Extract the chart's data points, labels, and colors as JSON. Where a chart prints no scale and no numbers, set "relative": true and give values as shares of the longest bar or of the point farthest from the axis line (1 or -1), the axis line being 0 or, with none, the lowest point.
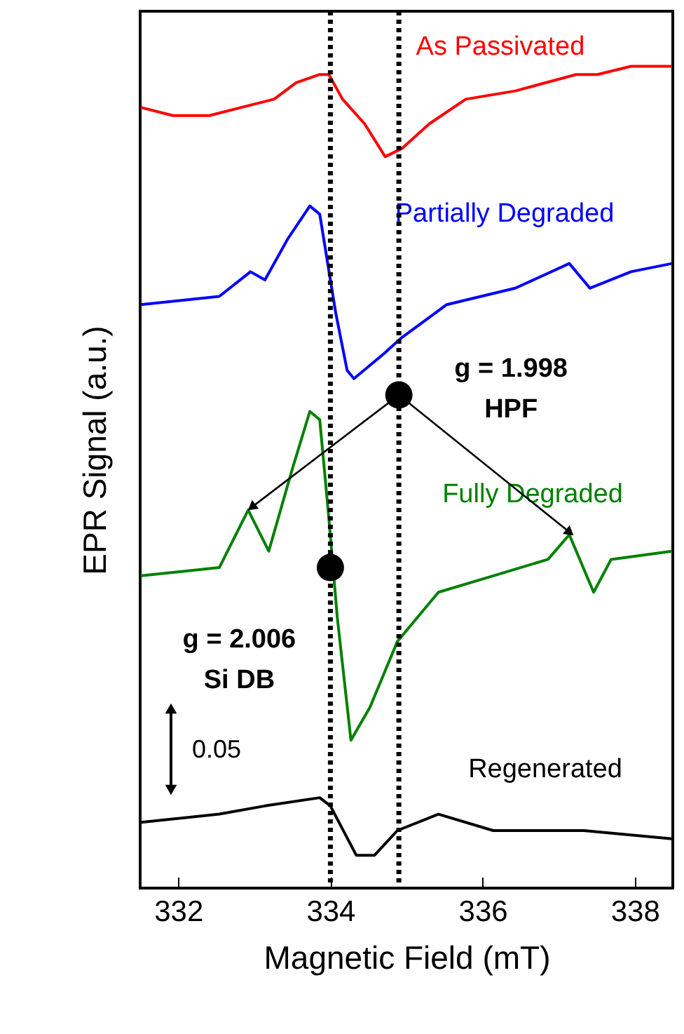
{
  "chart_data": {
    "type": "line",
    "relative": true,
    "xlabel": "Magnetic Field (mT)",
    "ylabel": "EPR Signal (a.u.)",
    "xlim": [
      331.5,
      338.5
    ],
    "xticks": [
      332,
      334,
      336,
      338
    ],
    "grid": false,
    "marker": "none",
    "line_style": "solid",
    "tick_labels": "x",
    "x": [
      331.51,
      331.93,
      332.41,
      332.83,
      333.26,
      333.55,
      333.86,
      333.98,
      334.16,
      334.45,
      334.72,
      334.94,
      335.3,
      335.78,
      336.43,
      337.23,
      337.51,
      337.95,
      338.49
    ],
    "series": [
      {
        "name": "As Passivated",
        "color": "#ff0000",
        "values": [
          0.95,
          0.94,
          0.94,
          0.95,
          0.96,
          0.98,
          0.99,
          0.99,
          0.96,
          0.93,
          0.89,
          0.9,
          0.93,
          0.96,
          0.97,
          0.99,
          0.99,
          1.0,
          1.0
        ]
      },
      {
        "name": "Partially Degraded",
        "color": "#0000ff",
        "x": [
          331.51,
          332.54,
          332.95,
          333.14,
          333.44,
          333.73,
          333.86,
          334.0,
          334.07,
          334.22,
          334.31,
          334.7,
          334.94,
          335.53,
          336.43,
          337.14,
          337.41,
          337.95,
          338.49
        ],
        "values": [
          0.71,
          0.72,
          0.75,
          0.74,
          0.79,
          0.83,
          0.82,
          0.74,
          0.7,
          0.63,
          0.62,
          0.65,
          0.67,
          0.71,
          0.73,
          0.76,
          0.73,
          0.75,
          0.76
        ]
      },
      {
        "name": "Fully Degraded",
        "color": "#008000",
        "x": [
          331.51,
          332.54,
          332.92,
          333.19,
          333.5,
          333.73,
          333.86,
          333.98,
          334.09,
          334.27,
          334.52,
          334.88,
          335.42,
          336.14,
          336.86,
          337.14,
          337.46,
          337.69,
          338.49
        ],
        "values": [
          0.38,
          0.39,
          0.46,
          0.41,
          0.51,
          0.58,
          0.57,
          0.45,
          0.33,
          0.18,
          0.22,
          0.3,
          0.36,
          0.38,
          0.4,
          0.43,
          0.36,
          0.4,
          0.41
        ]
      },
      {
        "name": "Regenerated",
        "color": "#000000",
        "x": [
          331.51,
          332.54,
          333.14,
          333.86,
          334.0,
          334.34,
          334.58,
          334.88,
          335.42,
          336.14,
          337.33,
          338.49
        ],
        "values": [
          0.08,
          0.09,
          0.1,
          0.11,
          0.1,
          0.04,
          0.04,
          0.07,
          0.09,
          0.07,
          0.07,
          0.06
        ]
      }
    ],
    "ref_lines": [
      {
        "axis": "x",
        "value": 334.0,
        "color": "#000000",
        "line_style": "dotted"
      },
      {
        "axis": "x",
        "value": 334.9,
        "color": "#000000",
        "line_style": "dotted"
      }
    ],
    "annotations": [
      {
        "text": "g = 1.998\nHPF",
        "x": 334.9,
        "y": 0.6
      },
      {
        "text": "g = 2.006\nSi DB",
        "x": 334.0,
        "y": 0.39
      },
      "0.05"
    ]
  }
}
